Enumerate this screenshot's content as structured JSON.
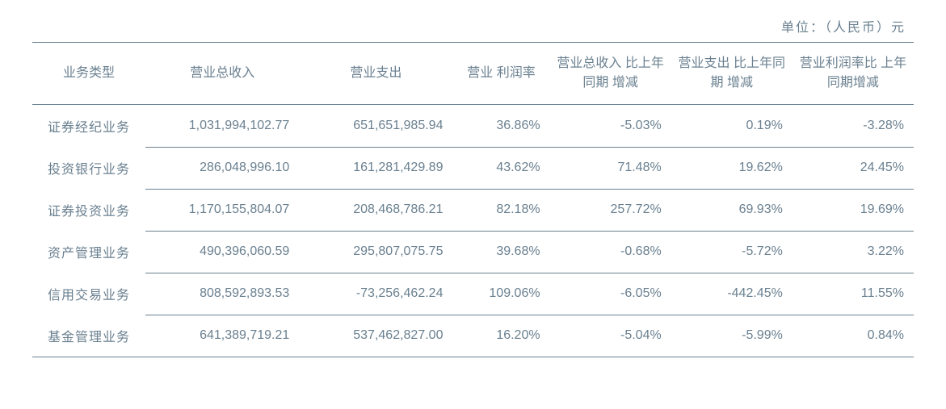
{
  "unit_label": "单位：（人民币）元",
  "table": {
    "type": "table",
    "text_color": "#6a8090",
    "border_color": "#6a8090",
    "background_color": "#ffffff",
    "font_size_pt": 12,
    "columns": [
      {
        "key": "business_type",
        "label": "业务类型",
        "align": "center"
      },
      {
        "key": "revenue",
        "label": "营业总收入",
        "align": "right"
      },
      {
        "key": "expense",
        "label": "营业支出",
        "align": "right"
      },
      {
        "key": "margin",
        "label": "营业\n利润率",
        "align": "right"
      },
      {
        "key": "rev_change",
        "label": "营业总收入\n比上年同期\n增减",
        "align": "right"
      },
      {
        "key": "exp_change",
        "label": "营业支出\n比上年同期\n增减",
        "align": "right"
      },
      {
        "key": "margin_change",
        "label": "营业利润率比\n上年同期增减",
        "align": "right"
      }
    ],
    "rows": [
      {
        "business_type": "证券经纪业务",
        "revenue": "1,031,994,102.77",
        "expense": "651,651,985.94",
        "margin": "36.86%",
        "rev_change": "-5.03%",
        "exp_change": "0.19%",
        "margin_change": "-3.28%"
      },
      {
        "business_type": "投资银行业务",
        "revenue": "286,048,996.10",
        "expense": "161,281,429.89",
        "margin": "43.62%",
        "rev_change": "71.48%",
        "exp_change": "19.62%",
        "margin_change": "24.45%"
      },
      {
        "business_type": "证券投资业务",
        "revenue": "1,170,155,804.07",
        "expense": "208,468,786.21",
        "margin": "82.18%",
        "rev_change": "257.72%",
        "exp_change": "69.93%",
        "margin_change": "19.69%"
      },
      {
        "business_type": "资产管理业务",
        "revenue": "490,396,060.59",
        "expense": "295,807,075.75",
        "margin": "39.68%",
        "rev_change": "-0.68%",
        "exp_change": "-5.72%",
        "margin_change": "3.22%"
      },
      {
        "business_type": "信用交易业务",
        "revenue": "808,592,893.53",
        "expense": "-73,256,462.24",
        "margin": "109.06%",
        "rev_change": "-6.05%",
        "exp_change": "-442.45%",
        "margin_change": "11.55%"
      },
      {
        "business_type": "基金管理业务",
        "revenue": "641,389,719.21",
        "expense": "537,462,827.00",
        "margin": "16.20%",
        "rev_change": "-5.04%",
        "exp_change": "-5.99%",
        "margin_change": "0.84%"
      }
    ]
  }
}
